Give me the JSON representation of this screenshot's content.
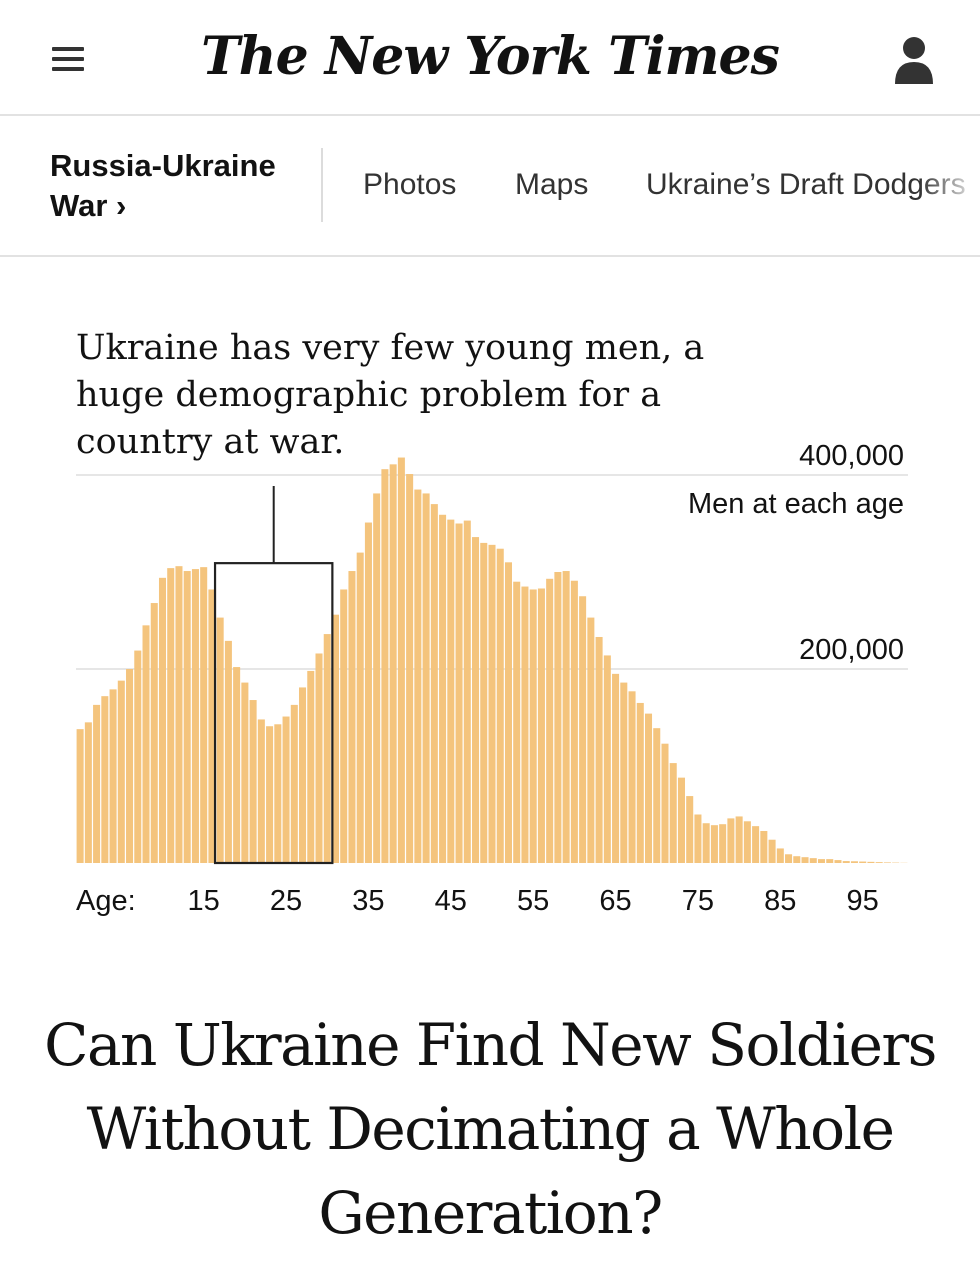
{
  "header": {
    "logo": "The New York Times",
    "menu_icon": "hamburger-menu-icon",
    "user_icon": "user-account-icon"
  },
  "subnav": {
    "section_label": "Russia-Ukraine War ›",
    "links": [
      "Photos",
      "Maps",
      "Ukraine’s Draft Dodgers"
    ]
  },
  "chart": {
    "title": "Ukraine has very few young men, a huge demographic problem for a country at war.",
    "bar_color": "#f4c47d"
  },
  "chart_data": {
    "type": "bar",
    "title": "Ukraine has very few young men, a huge demographic problem for a country at war.",
    "ylabel": "Men at each age",
    "xlabel": "Age:",
    "x_ticks": [
      15,
      25,
      35,
      45,
      55,
      65,
      75,
      85,
      95
    ],
    "y_ticks": [
      {
        "value": 200000,
        "label": "200,000"
      },
      {
        "value": 400000,
        "label": "400,000"
      }
    ],
    "ylim": [
      0,
      410000
    ],
    "highlight_range": [
      17,
      31
    ],
    "x": [
      0,
      1,
      2,
      3,
      4,
      5,
      6,
      7,
      8,
      9,
      10,
      11,
      12,
      13,
      14,
      15,
      16,
      17,
      18,
      19,
      20,
      21,
      22,
      23,
      24,
      25,
      26,
      27,
      28,
      29,
      30,
      31,
      32,
      33,
      34,
      35,
      36,
      37,
      38,
      39,
      40,
      41,
      42,
      43,
      44,
      45,
      46,
      47,
      48,
      49,
      50,
      51,
      52,
      53,
      54,
      55,
      56,
      57,
      58,
      59,
      60,
      61,
      62,
      63,
      64,
      65,
      66,
      67,
      68,
      69,
      70,
      71,
      72,
      73,
      74,
      75,
      76,
      77,
      78,
      79,
      80,
      81,
      82,
      83,
      84,
      85,
      86,
      87,
      88,
      89,
      90,
      91,
      92,
      93,
      94,
      95,
      96,
      97,
      98,
      99,
      100
    ],
    "values": [
      138000,
      145000,
      163000,
      172000,
      179000,
      188000,
      200000,
      219000,
      245000,
      268000,
      294000,
      304000,
      306000,
      301000,
      303000,
      305000,
      282000,
      253000,
      229000,
      202000,
      186000,
      168000,
      148000,
      141000,
      143000,
      151000,
      163000,
      181000,
      198000,
      216000,
      236000,
      256000,
      282000,
      301000,
      320000,
      351000,
      381000,
      406000,
      411000,
      418000,
      401000,
      385000,
      381000,
      370000,
      359000,
      354000,
      350000,
      353000,
      336000,
      330000,
      328000,
      324000,
      310000,
      290000,
      285000,
      282000,
      283000,
      293000,
      300000,
      301000,
      291000,
      275000,
      253000,
      233000,
      214000,
      195000,
      186000,
      177000,
      165000,
      154000,
      139000,
      123000,
      103000,
      88000,
      69000,
      50000,
      41000,
      39000,
      40000,
      46000,
      48000,
      43000,
      38000,
      33000,
      24000,
      15000,
      9000,
      7000,
      6000,
      5000,
      4000,
      4000,
      3000,
      2000,
      1800,
      1500,
      1200,
      900,
      600,
      400,
      200
    ]
  },
  "headline": "Can Ukraine Find New Soldiers Without Decimating a Whole Generation?"
}
